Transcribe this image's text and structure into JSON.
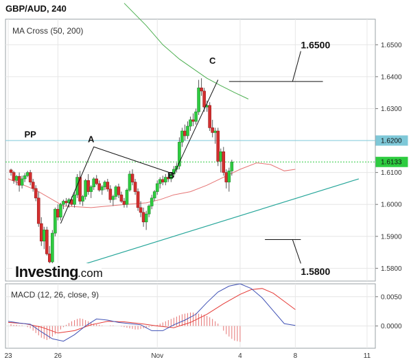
{
  "chart_title": "GBP/AUD, 240",
  "chart_data": [
    {
      "type": "candlestick",
      "panel": "price",
      "indicator_label": "MA Cross (50, 200)",
      "ylim": [
        1.576,
        1.658
      ],
      "y_ticks": [
        "1.6500",
        "1.6400",
        "1.6300",
        "1.6100",
        "1.6000",
        "1.5900",
        "1.5800"
      ],
      "x_range": [
        0,
        132
      ],
      "x_ticks": [
        {
          "label": "23",
          "x": 0
        },
        {
          "label": "26",
          "x": 18
        },
        {
          "label": "Nov",
          "x": 54
        },
        {
          "label": "4",
          "x": 84
        },
        {
          "label": "8",
          "x": 104
        },
        {
          "label": "11",
          "x": 130
        }
      ],
      "candles": [
        [
          1.6108,
          1.6112,
          1.609,
          1.61
        ],
        [
          1.61,
          1.6105,
          1.6065,
          1.6075
        ],
        [
          1.6075,
          1.6092,
          1.606,
          1.6088
        ],
        [
          1.6088,
          1.61,
          1.604,
          1.606
        ],
        [
          1.606,
          1.609,
          1.605,
          1.608
        ],
        [
          1.608,
          1.6098,
          1.607,
          1.609
        ],
        [
          1.609,
          1.6105,
          1.6085,
          1.61
        ],
        [
          1.61,
          1.6108,
          1.606,
          1.607
        ],
        [
          1.607,
          1.608,
          1.604,
          1.605
        ],
        [
          1.605,
          1.606,
          1.601,
          1.602
        ],
        [
          1.602,
          1.604,
          1.593,
          1.594
        ],
        [
          1.594,
          1.596,
          1.587,
          1.5885
        ],
        [
          1.5885,
          1.593,
          1.586,
          1.592
        ],
        [
          1.592,
          1.593,
          1.584,
          1.5845
        ],
        [
          1.5845,
          1.587,
          1.58,
          1.582
        ],
        [
          1.582,
          1.592,
          1.58,
          1.591
        ],
        [
          1.591,
          1.599,
          1.59,
          1.5985
        ],
        [
          1.5985,
          1.6,
          1.595,
          1.596
        ],
        [
          1.596,
          1.6005,
          1.595,
          1.6
        ],
        [
          1.6,
          1.6015,
          1.5985,
          1.601
        ],
        [
          1.601,
          1.602,
          1.5995,
          1.6005
        ],
        [
          1.6005,
          1.602,
          1.599,
          1.6015
        ],
        [
          1.6015,
          1.6025,
          1.5995,
          1.6
        ],
        [
          1.6,
          1.604,
          1.599,
          1.603
        ],
        [
          1.603,
          1.6095,
          1.602,
          1.6085
        ],
        [
          1.6085,
          1.6105,
          1.6,
          1.601
        ],
        [
          1.601,
          1.603,
          1.5995,
          1.6025
        ],
        [
          1.6025,
          1.608,
          1.6015,
          1.6075
        ],
        [
          1.6075,
          1.6095,
          1.603,
          1.604
        ],
        [
          1.604,
          1.606,
          1.602,
          1.6055
        ],
        [
          1.6055,
          1.6085,
          1.6045,
          1.608
        ],
        [
          1.608,
          1.6092,
          1.606,
          1.6065
        ],
        [
          1.6065,
          1.6075,
          1.604,
          1.6045
        ],
        [
          1.6045,
          1.606,
          1.603,
          1.6055
        ],
        [
          1.6055,
          1.6075,
          1.6045,
          1.607
        ],
        [
          1.607,
          1.608,
          1.604,
          1.6048
        ],
        [
          1.6048,
          1.606,
          1.6005,
          1.6015
        ],
        [
          1.6015,
          1.603,
          1.5995,
          1.6025
        ],
        [
          1.6025,
          1.606,
          1.6015,
          1.6055
        ],
        [
          1.6055,
          1.6065,
          1.602,
          1.603
        ],
        [
          1.603,
          1.604,
          1.6005,
          1.601
        ],
        [
          1.601,
          1.602,
          1.599,
          1.6
        ],
        [
          1.6,
          1.605,
          1.599,
          1.6045
        ],
        [
          1.6045,
          1.6105,
          1.604,
          1.6095
        ],
        [
          1.6095,
          1.611,
          1.606,
          1.607
        ],
        [
          1.607,
          1.608,
          1.603,
          1.604
        ],
        [
          1.604,
          1.605,
          1.598,
          1.599
        ],
        [
          1.599,
          1.601,
          1.596,
          1.5975
        ],
        [
          1.5975,
          1.599,
          1.593,
          1.5945
        ],
        [
          1.5945,
          1.598,
          1.592,
          1.597
        ],
        [
          1.597,
          1.6,
          1.596,
          1.5995
        ],
        [
          1.5995,
          1.603,
          1.5985,
          1.602
        ],
        [
          1.602,
          1.6045,
          1.601,
          1.604
        ],
        [
          1.604,
          1.6075,
          1.603,
          1.6065
        ],
        [
          1.6065,
          1.6085,
          1.605,
          1.6078
        ],
        [
          1.6078,
          1.609,
          1.606,
          1.607
        ],
        [
          1.607,
          1.6095,
          1.606,
          1.6085
        ],
        [
          1.6085,
          1.61,
          1.607,
          1.608
        ],
        [
          1.608,
          1.61,
          1.607,
          1.6095
        ],
        [
          1.6095,
          1.612,
          1.6085,
          1.611
        ],
        [
          1.611,
          1.613,
          1.61,
          1.612
        ],
        [
          1.612,
          1.621,
          1.611,
          1.6195
        ],
        [
          1.6195,
          1.624,
          1.618,
          1.623
        ],
        [
          1.623,
          1.625,
          1.62,
          1.6215
        ],
        [
          1.6215,
          1.626,
          1.6205,
          1.6245
        ],
        [
          1.6245,
          1.6275,
          1.623,
          1.6265
        ],
        [
          1.6265,
          1.6285,
          1.6245,
          1.626
        ],
        [
          1.626,
          1.63,
          1.625,
          1.629
        ],
        [
          1.629,
          1.639,
          1.628,
          1.6365
        ],
        [
          1.6365,
          1.6395,
          1.634,
          1.6355
        ],
        [
          1.6355,
          1.6365,
          1.629,
          1.6305
        ],
        [
          1.6305,
          1.6325,
          1.629,
          1.631
        ],
        [
          1.631,
          1.632,
          1.623,
          1.624
        ],
        [
          1.624,
          1.6265,
          1.621,
          1.6225
        ],
        [
          1.6225,
          1.624,
          1.619,
          1.623
        ],
        [
          1.623,
          1.624,
          1.612,
          1.6135
        ],
        [
          1.6135,
          1.6175,
          1.61,
          1.6165
        ],
        [
          1.6165,
          1.618,
          1.609,
          1.61
        ],
        [
          1.61,
          1.611,
          1.605,
          1.607
        ],
        [
          1.607,
          1.6115,
          1.604,
          1.6105
        ],
        [
          1.6105,
          1.614,
          1.609,
          1.6133
        ]
      ],
      "ma_fast": [
        [
          0,
          1.608
        ],
        [
          10,
          1.6045
        ],
        [
          20,
          1.5995
        ],
        [
          30,
          1.599
        ],
        [
          40,
          1.5998
        ],
        [
          50,
          1.6005
        ],
        [
          55,
          1.6015
        ],
        [
          60,
          1.603
        ],
        [
          66,
          1.604
        ],
        [
          72,
          1.606
        ],
        [
          78,
          1.6085
        ],
        [
          84,
          1.611
        ],
        [
          90,
          1.613
        ],
        [
          95,
          1.6125
        ],
        [
          100,
          1.6105
        ],
        [
          104,
          1.611
        ]
      ],
      "ma_slow": [
        [
          42,
          1.663
        ],
        [
          50,
          1.656
        ],
        [
          56,
          1.65
        ],
        [
          62,
          1.6455
        ],
        [
          67,
          1.6425
        ],
        [
          72,
          1.6395
        ],
        [
          77,
          1.6372
        ],
        [
          82,
          1.635
        ],
        [
          87,
          1.633
        ]
      ],
      "pp_level": 1.62,
      "last_price": 1.6133,
      "badges": [
        {
          "label": "1.6200",
          "value": 1.62,
          "color": "#7ec8d8"
        },
        {
          "label": "1.6133",
          "value": 1.6133,
          "color": "#2ecc40"
        }
      ],
      "annotations": [
        {
          "label": "PP",
          "x": 8,
          "y": 1.621
        },
        {
          "label": "A",
          "x": 30,
          "y": 1.6195
        },
        {
          "label": "B",
          "x": 59,
          "y": 1.6082
        },
        {
          "label": "C",
          "x": 74,
          "y": 1.644
        }
      ],
      "abc_path": [
        [
          19,
          1.594
        ],
        [
          31,
          1.618
        ],
        [
          60,
          1.6095
        ],
        [
          76,
          1.639
        ]
      ],
      "trendline": [
        [
          19,
          1.579
        ],
        [
          127,
          1.608
        ]
      ],
      "level_targets": [
        {
          "label": "1.6500",
          "line": [
            [
              80,
              1.6385
            ],
            [
              114,
              1.6385
            ]
          ],
          "connector": [
            [
              103,
              1.6385
            ],
            [
              106,
              1.648
            ]
          ],
          "text_pos": [
            106,
            1.65
          ]
        },
        {
          "label": "1.5800",
          "line": [
            [
              93,
              1.589
            ],
            [
              106,
              1.589
            ]
          ],
          "connector": [
            [
              103,
              1.589
            ],
            [
              106,
              1.5815
            ]
          ],
          "text_pos": [
            106,
            1.579
          ]
        }
      ],
      "logo": {
        "main": "Investing",
        "sub": ".com"
      }
    },
    {
      "type": "macd",
      "panel": "indicator",
      "indicator_label": "MACD (12, 26, close, 9)",
      "ylim": [
        -0.0038,
        0.0072
      ],
      "y_ticks": [
        "0.0050",
        "0.0000"
      ],
      "macd_line": [
        [
          0,
          0.0008
        ],
        [
          4,
          0.0005
        ],
        [
          8,
          0.0003
        ],
        [
          12,
          -0.001
        ],
        [
          16,
          -0.0022
        ],
        [
          20,
          -0.0026
        ],
        [
          24,
          -0.0015
        ],
        [
          28,
          0.0
        ],
        [
          32,
          0.0012
        ],
        [
          36,
          0.001
        ],
        [
          40,
          0.0006
        ],
        [
          44,
          0.0004
        ],
        [
          48,
          0.0002
        ],
        [
          52,
          -0.0008
        ],
        [
          56,
          -0.0008
        ],
        [
          60,
          0.0002
        ],
        [
          64,
          0.001
        ],
        [
          68,
          0.002
        ],
        [
          72,
          0.004
        ],
        [
          76,
          0.0058
        ],
        [
          80,
          0.0068
        ],
        [
          84,
          0.0072
        ],
        [
          88,
          0.0064
        ],
        [
          92,
          0.0048
        ],
        [
          96,
          0.0026
        ],
        [
          100,
          0.0004
        ],
        [
          104,
          0.0001
        ]
      ],
      "signal_line": [
        [
          0,
          0.0006
        ],
        [
          6,
          0.0004
        ],
        [
          12,
          -0.0002
        ],
        [
          18,
          -0.0012
        ],
        [
          24,
          -0.0008
        ],
        [
          30,
          0.0002
        ],
        [
          36,
          0.0008
        ],
        [
          42,
          0.0007
        ],
        [
          48,
          0.0004
        ],
        [
          54,
          0.0
        ],
        [
          60,
          -0.0003
        ],
        [
          66,
          0.0006
        ],
        [
          72,
          0.002
        ],
        [
          78,
          0.0038
        ],
        [
          84,
          0.0054
        ],
        [
          88,
          0.0062
        ],
        [
          92,
          0.0064
        ],
        [
          96,
          0.0056
        ],
        [
          100,
          0.0042
        ],
        [
          104,
          0.0028
        ]
      ],
      "histogram": [
        0.0003,
        0.0002,
        0.0002,
        0.0001,
        0.0001,
        0.0,
        -0.0002,
        -0.0004,
        -0.0008,
        -0.0012,
        -0.0016,
        -0.002,
        -0.0022,
        -0.0024,
        -0.0022,
        -0.0018,
        -0.0014,
        -0.001,
        -0.0006,
        -0.0002,
        0.0002,
        0.0005,
        0.0008,
        0.001,
        0.0012,
        0.0013,
        0.0012,
        0.001,
        0.0008,
        0.0006,
        0.0004,
        0.0003,
        0.0002,
        0.0001,
        0.0,
        0.0,
        0.0001,
        0.0001,
        0.0,
        0.0,
        -0.0001,
        -0.0002,
        -0.0003,
        -0.0004,
        -0.0005,
        -0.0006,
        -0.0006,
        -0.0005,
        -0.0004,
        -0.0003,
        -0.0002,
        -0.0001,
        0.0,
        0.0002,
        0.0004,
        0.0006,
        0.0008,
        0.001,
        0.0012,
        0.0014,
        0.0016,
        0.0018,
        0.002,
        0.0021,
        0.0022,
        0.0023,
        0.0023,
        0.0022,
        0.0021,
        0.002,
        0.0019,
        0.0017,
        0.0015,
        0.0012,
        0.0008,
        0.0004,
        0.0,
        -0.0008,
        -0.0014,
        -0.0018,
        -0.0022,
        -0.0025,
        -0.0026,
        -0.0027
      ]
    }
  ]
}
